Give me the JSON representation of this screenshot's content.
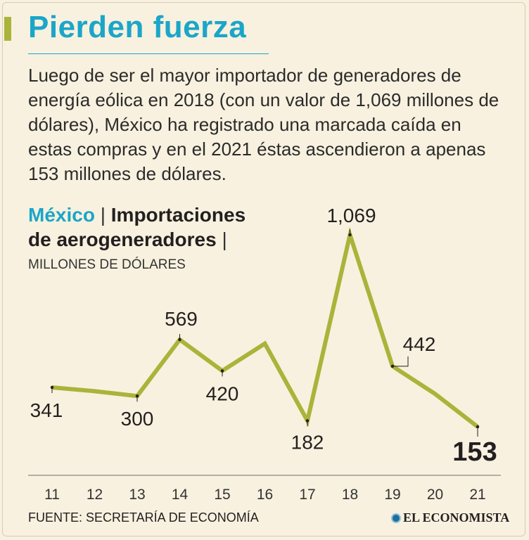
{
  "title": "Pierden fuerza",
  "intro": "Luego de ser el mayor importador de generadores de energía eólica en 2018 (con un valor de 1,069 millones de dólares), México ha registrado una marcada caída en estas compras y en el 2021 éstas ascendieron a apenas 153 millones de dólares.",
  "chart_header": {
    "country": "México",
    "separator": "|",
    "line1": "Importaciones",
    "line2": "de aerogeneradores",
    "units": "MILLONES DE DÓLARES"
  },
  "chart_data": {
    "type": "line",
    "title": "México | Importaciones de aerogeneradores |",
    "ylabel": "MILLONES DE DÓLARES",
    "xlabel": "",
    "categories": [
      "11",
      "12",
      "13",
      "14",
      "15",
      "16",
      "17",
      "18",
      "19",
      "20",
      "21"
    ],
    "values": [
      341,
      323,
      300,
      569,
      420,
      550,
      182,
      1069,
      442,
      310,
      153
    ],
    "data_labels": [
      {
        "index": 0,
        "label": "341"
      },
      {
        "index": 2,
        "label": "300"
      },
      {
        "index": 3,
        "label": "569"
      },
      {
        "index": 4,
        "label": "420"
      },
      {
        "index": 6,
        "label": "182"
      },
      {
        "index": 7,
        "label": "1,069"
      },
      {
        "index": 8,
        "label": "442"
      },
      {
        "index": 10,
        "label": "153"
      }
    ],
    "ylim": [
      100,
      1100
    ],
    "line_color": "#a9b43a",
    "grid": false
  },
  "source": "FUENTE: SECRETARÍA DE ECONOMÍA",
  "brand": "EL ECONOMISTA",
  "colors": {
    "accent": "#1ba6c9",
    "line": "#a9b43a",
    "background": "#f8f1df"
  }
}
